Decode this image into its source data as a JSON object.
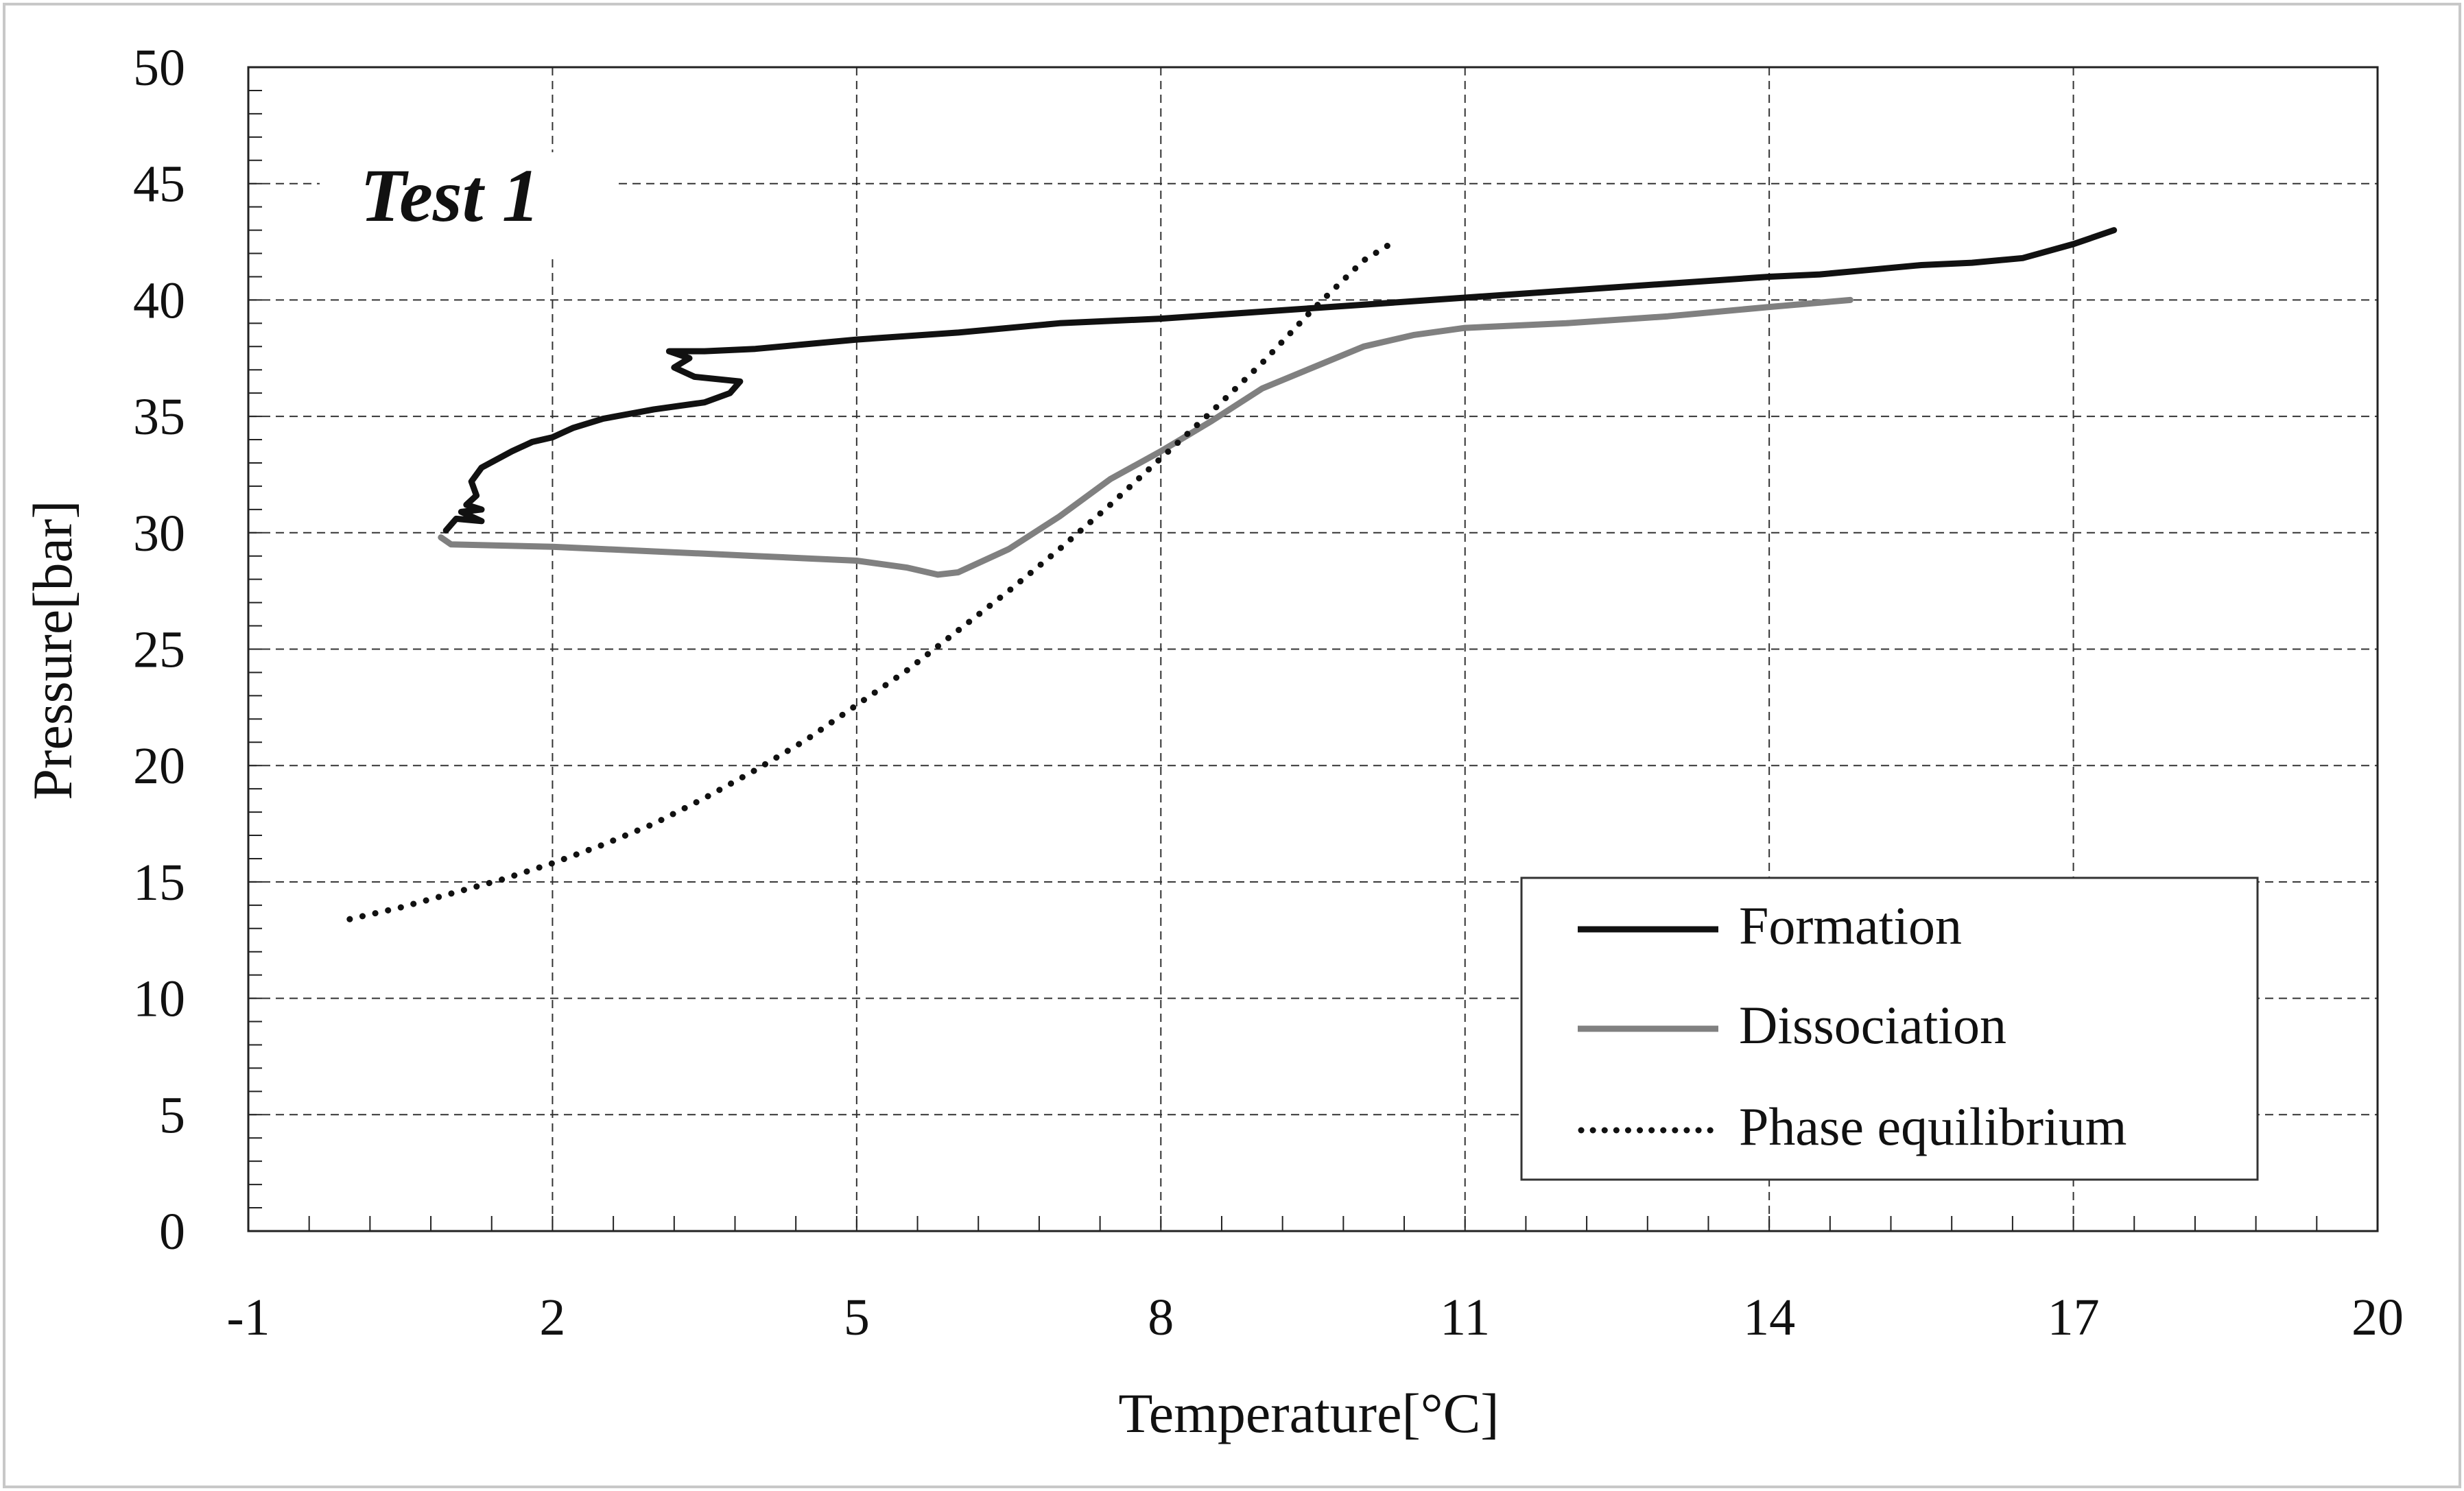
{
  "chart_data": {
    "type": "line",
    "panel_label": "Test 1",
    "xlabel": "Temperature[°C]",
    "ylabel": "Pressure[bar]",
    "xlim": [
      -1,
      20
    ],
    "ylim": [
      0,
      50
    ],
    "xticks": [
      -1,
      2,
      5,
      8,
      11,
      14,
      17,
      20
    ],
    "yticks": [
      0,
      5,
      10,
      15,
      20,
      25,
      30,
      35,
      40,
      45,
      50
    ],
    "x_minor_step": 0.6,
    "y_minor_step": 1,
    "grid": true,
    "legend_position": "bottom-right",
    "series": [
      {
        "name": "Formation",
        "style": "solid",
        "color": "#111111",
        "x": [
          17.4,
          17.0,
          16.5,
          16.0,
          15.5,
          15.0,
          14.5,
          14.0,
          13.0,
          12.0,
          11.0,
          10.0,
          9.0,
          8.0,
          7.0,
          6.0,
          5.0,
          4.5,
          4.0,
          3.5,
          3.15,
          3.35,
          3.2,
          3.4,
          3.85,
          3.75,
          3.5,
          3.0,
          2.5,
          2.2,
          2.0,
          1.8,
          1.6,
          1.3,
          1.2,
          1.25,
          1.15,
          1.3,
          1.1,
          1.3,
          1.05,
          0.95
        ],
        "y": [
          43.0,
          42.4,
          41.8,
          41.6,
          41.5,
          41.3,
          41.1,
          41.0,
          40.7,
          40.4,
          40.1,
          39.8,
          39.5,
          39.2,
          39.0,
          38.6,
          38.3,
          38.1,
          37.9,
          37.8,
          37.8,
          37.5,
          37.1,
          36.7,
          36.5,
          36.0,
          35.6,
          35.3,
          34.9,
          34.5,
          34.1,
          33.9,
          33.5,
          32.8,
          32.2,
          31.6,
          31.2,
          31.0,
          30.9,
          30.5,
          30.6,
          30.1
        ]
      },
      {
        "name": "Dissociation",
        "style": "solid",
        "color": "#808080",
        "x": [
          0.9,
          1.0,
          1.5,
          2.0,
          2.5,
          3.0,
          3.5,
          4.0,
          4.5,
          5.0,
          5.5,
          5.8,
          6.0,
          6.5,
          7.0,
          7.5,
          8.0,
          8.5,
          9.0,
          9.5,
          10.0,
          10.5,
          11.0,
          12.0,
          13.0,
          14.0,
          14.8
        ],
        "y": [
          29.8,
          29.5,
          29.45,
          29.4,
          29.3,
          29.2,
          29.1,
          29.0,
          28.9,
          28.8,
          28.5,
          28.2,
          28.3,
          29.3,
          30.7,
          32.3,
          33.5,
          34.8,
          36.2,
          37.1,
          38.0,
          38.5,
          38.8,
          39.0,
          39.3,
          39.7,
          40.0
        ]
      },
      {
        "name": "Phase equilibrium",
        "style": "dotted",
        "color": "#111111",
        "x": [
          0.0,
          0.5,
          1.0,
          1.5,
          2.0,
          2.5,
          3.0,
          3.5,
          4.0,
          4.5,
          5.0,
          5.5,
          6.0,
          6.5,
          7.0,
          7.5,
          8.0,
          8.5,
          9.0,
          9.5,
          10.0,
          10.3
        ],
        "y": [
          13.4,
          13.9,
          14.5,
          15.1,
          15.8,
          16.6,
          17.5,
          18.6,
          19.8,
          21.1,
          22.6,
          24.1,
          25.8,
          27.5,
          29.3,
          31.2,
          33.2,
          35.2,
          37.3,
          39.6,
          41.7,
          42.5
        ]
      }
    ]
  }
}
